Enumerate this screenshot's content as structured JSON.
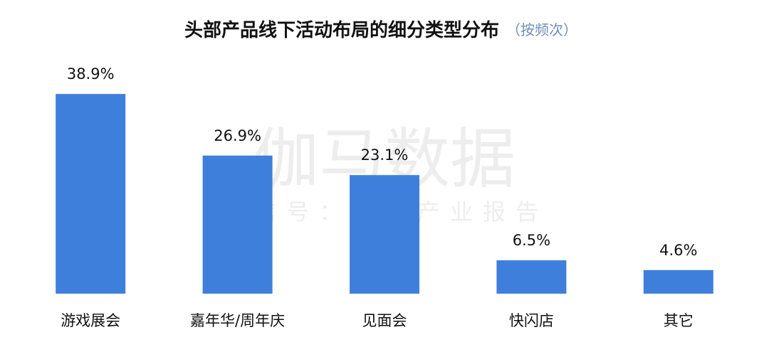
{
  "chart_data": {
    "type": "bar",
    "title": "头部产品线下活动布局的细分类型分布",
    "subtitle": "（按频次）",
    "categories": [
      "游戏展会",
      "嘉年华/周年庆",
      "见面会",
      "快闪店",
      "其它"
    ],
    "values": [
      38.9,
      26.9,
      23.1,
      6.5,
      4.6
    ],
    "value_labels": [
      "38.9%",
      "26.9%",
      "23.1%",
      "6.5%",
      "4.6%"
    ],
    "color": "#3f7fdc",
    "watermark": "伽马数据",
    "watermark_subtitle": "微信号：游戏产业报告"
  }
}
